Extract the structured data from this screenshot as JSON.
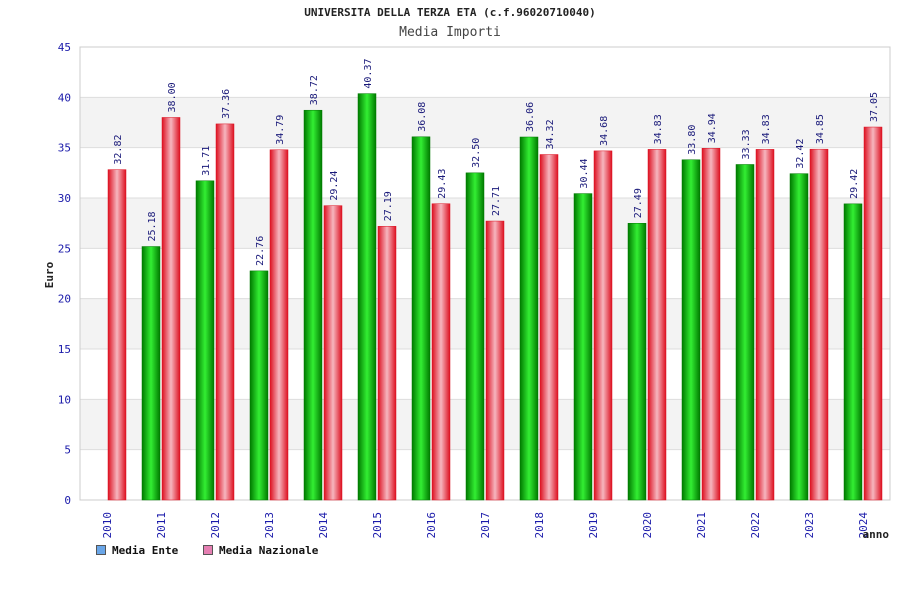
{
  "colors": {
    "ente_dark": "#007a00",
    "ente_light": "#33ee33",
    "naz_dark": "#dd1020",
    "naz_light": "#f6b6bf",
    "axis_text": "#1a1aaa",
    "band": "#f3f3f3",
    "grid": "#dddddd"
  },
  "legend": {
    "ente_label": "Media Ente",
    "naz_label": "Media Nazionale",
    "ente_swatch": "#6aa6e8",
    "naz_swatch": "#e57fb2"
  },
  "chart_data": {
    "type": "bar",
    "title": "UNIVERSITA DELLA TERZA ETA (c.f.96020710040)",
    "subtitle": "Media Importi",
    "xlabel": "anno",
    "ylabel": "Euro",
    "ylim": [
      0,
      45
    ],
    "yticks": [
      0,
      5,
      10,
      15,
      20,
      25,
      30,
      35,
      40,
      45
    ],
    "grid": true,
    "legend_position": "bottom-left",
    "categories": [
      "2010",
      "2011",
      "2012",
      "2013",
      "2014",
      "2015",
      "2016",
      "2017",
      "2018",
      "2019",
      "2020",
      "2021",
      "2022",
      "2023",
      "2024"
    ],
    "series": [
      {
        "name": "Media Ente",
        "values": [
          null,
          25.18,
          31.71,
          22.76,
          38.72,
          40.37,
          36.08,
          32.5,
          36.06,
          30.44,
          27.49,
          33.8,
          33.33,
          32.42,
          29.42
        ],
        "labels": [
          "",
          "25.18",
          "31.71",
          "22.76",
          "38.72",
          "40.37",
          "36.08",
          "32.50",
          "36.06",
          "30.44",
          "27.49",
          "33.80",
          "33.33",
          "32.42",
          "29.42"
        ]
      },
      {
        "name": "Media Nazionale",
        "values": [
          32.82,
          38.0,
          37.36,
          34.79,
          29.24,
          27.19,
          29.43,
          27.71,
          34.32,
          34.68,
          34.83,
          34.94,
          34.83,
          34.85,
          37.05
        ],
        "labels": [
          "32.82",
          "38.00",
          "37.36",
          "34.79",
          "29.24",
          "27.19",
          "29.43",
          "27.71",
          "34.32",
          "34.68",
          "34.83",
          "34.94",
          "34.83",
          "34.85",
          "37.05"
        ]
      }
    ]
  }
}
